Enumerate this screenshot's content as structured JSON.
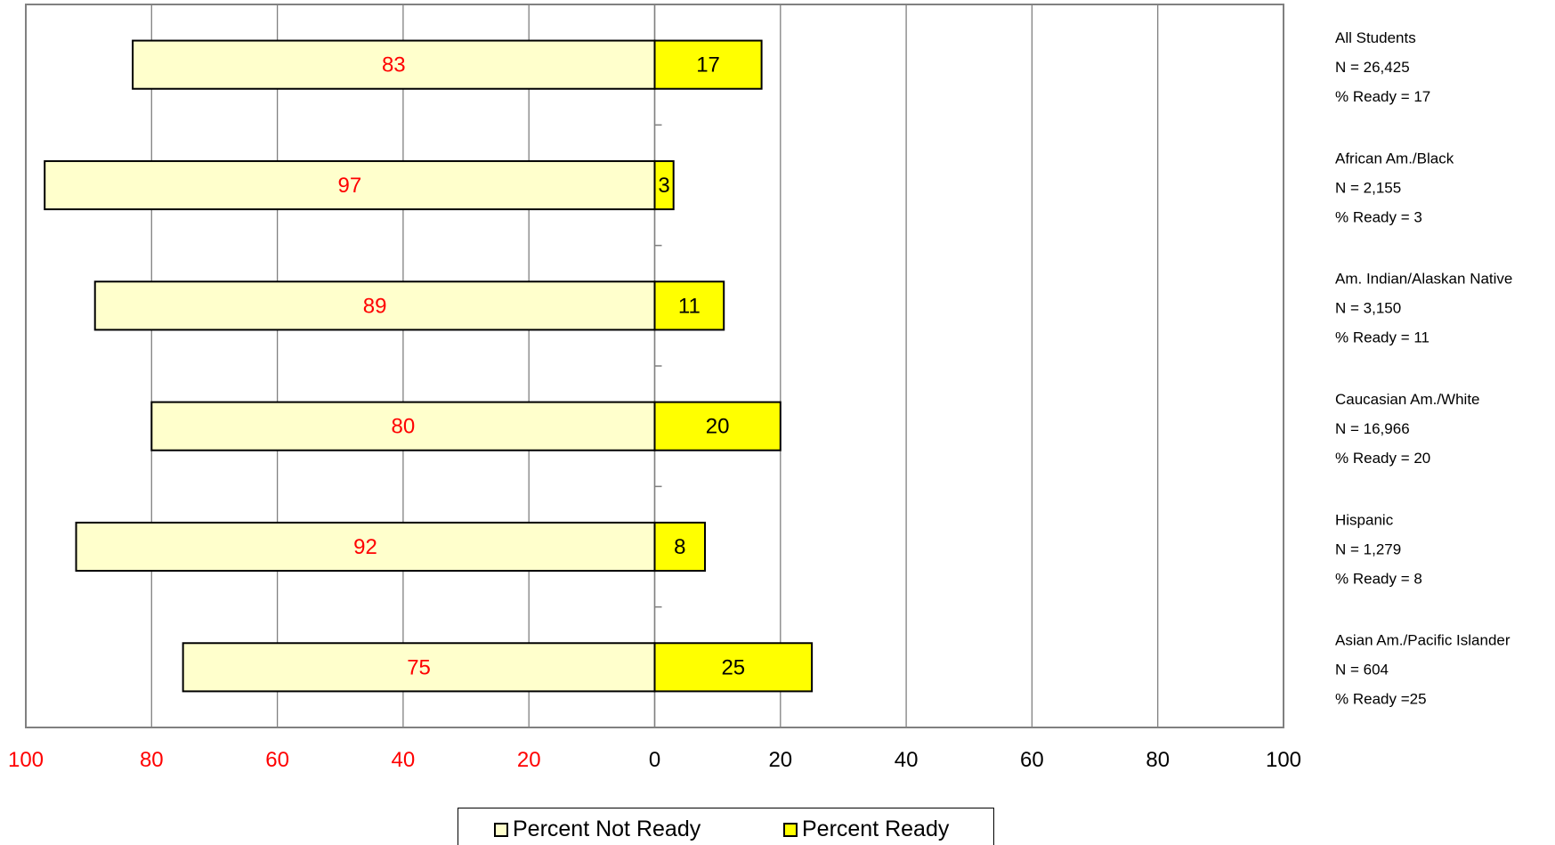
{
  "chart_data": {
    "type": "bar",
    "orientation": "horizontal-diverging",
    "categories": [
      "All Students",
      "African Am./Black",
      "Am. Indian/Alaskan Native",
      "Caucasian Am./White",
      "Hispanic",
      "Asian Am./Pacific Islander"
    ],
    "series": [
      {
        "name": "Percent Not Ready",
        "values": [
          83,
          97,
          89,
          80,
          92,
          75
        ],
        "color": "#ffffcc",
        "label_color": "#ff0000",
        "direction": "left"
      },
      {
        "name": "Percent Ready",
        "values": [
          17,
          3,
          11,
          20,
          8,
          25
        ],
        "color": "#ffff00",
        "label_color": "#000000",
        "direction": "right"
      }
    ],
    "x_ticks": [
      {
        "label": "100",
        "color": "#ff0000"
      },
      {
        "label": "80",
        "color": "#ff0000"
      },
      {
        "label": "60",
        "color": "#ff0000"
      },
      {
        "label": "40",
        "color": "#ff0000"
      },
      {
        "label": "20",
        "color": "#ff0000"
      },
      {
        "label": "0",
        "color": "#000000"
      },
      {
        "label": "20",
        "color": "#000000"
      },
      {
        "label": "40",
        "color": "#000000"
      },
      {
        "label": "60",
        "color": "#000000"
      },
      {
        "label": "80",
        "color": "#000000"
      },
      {
        "label": "100",
        "color": "#000000"
      }
    ],
    "xlim": [
      -100,
      100
    ],
    "grid": true,
    "legend_position": "bottom-center",
    "group_annotations": [
      {
        "name": "All Students",
        "n_line": "N = 26,425",
        "ready_line": "% Ready = 17"
      },
      {
        "name": "African Am./Black",
        "n_line": "N = 2,155",
        "ready_line": "% Ready = 3"
      },
      {
        "name": "Am. Indian/Alaskan Native",
        "n_line": "N =  3,150",
        "ready_line": "% Ready = 11"
      },
      {
        "name": "Caucasian Am./White",
        "n_line": "N =  16,966",
        "ready_line": "% Ready = 20"
      },
      {
        "name": "Hispanic",
        "n_line": "N =  1,279",
        "ready_line": "% Ready = 8"
      },
      {
        "name": "Asian Am./Pacific Islander",
        "n_line": "N =  604",
        "ready_line": "% Ready =25"
      }
    ]
  },
  "legend": {
    "not_ready_label": "Percent Not Ready",
    "ready_label": "Percent Ready"
  }
}
